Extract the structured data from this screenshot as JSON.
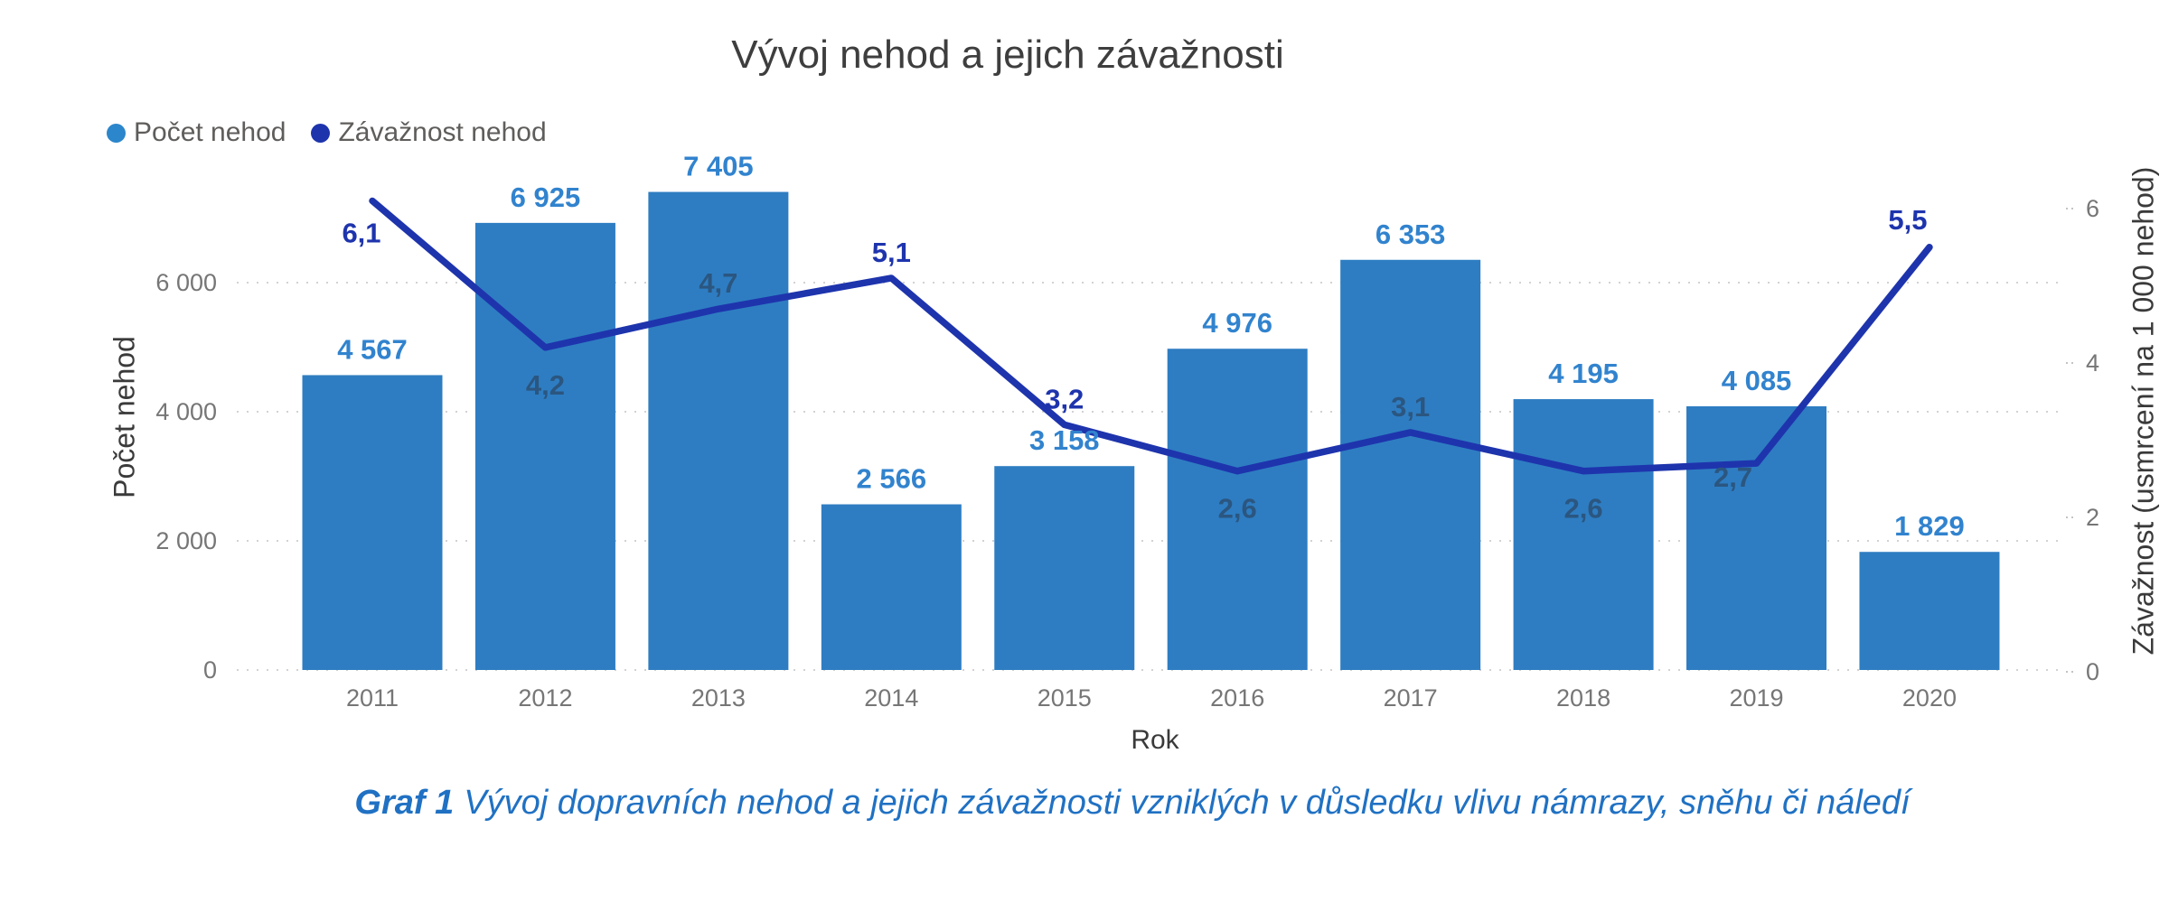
{
  "header": {
    "title": "Vývoj nehod a jejich závažnosti"
  },
  "legend": {
    "items": [
      {
        "label": "Počet nehod",
        "marker_color": "#2C86CB"
      },
      {
        "label": "Závažnost nehod",
        "marker_color": "#1E34AD"
      }
    ]
  },
  "chart_data": {
    "type": "combo-bar-line",
    "title": "Vývoj nehod a jejich závažnosti",
    "categories": [
      "2011",
      "2012",
      "2013",
      "2014",
      "2015",
      "2016",
      "2017",
      "2018",
      "2019",
      "2020"
    ],
    "series": [
      {
        "name": "Počet nehod",
        "type": "bar",
        "y_axis": "left",
        "values": [
          4567,
          6925,
          7405,
          2566,
          3158,
          4976,
          6353,
          4195,
          4085,
          1829
        ],
        "value_labels": [
          "4 567",
          "6 925",
          "7 405",
          "2 566",
          "3 158",
          "4 976",
          "6 353",
          "4 195",
          "4 085",
          "1 829"
        ],
        "color": "#2E7DC2",
        "label_color": "#3183CE"
      },
      {
        "name": "Závažnost nehod",
        "type": "line",
        "y_axis": "right",
        "values": [
          6.1,
          4.2,
          4.7,
          5.1,
          3.2,
          2.6,
          3.1,
          2.6,
          2.7,
          5.5
        ],
        "value_labels": [
          "6,1",
          "4,2",
          "4,7",
          "5,1",
          "3,2",
          "2,6",
          "3,1",
          "2,6",
          "2,7",
          "5,5"
        ],
        "label_placements": [
          "left-below",
          "below",
          "above",
          "above",
          "above",
          "below",
          "above",
          "below",
          "on-left",
          "above-left"
        ],
        "color": "#1E34AD",
        "label_color": "#1E34AD",
        "label_color_on_bar": "#2B5680"
      }
    ],
    "x_axis": {
      "title": "Rok"
    },
    "y_axis_left": {
      "title": "Počet nehod",
      "tick_values": [
        0,
        2000,
        4000,
        6000
      ],
      "tick_labels": [
        "0",
        "2 000",
        "4 000",
        "6 000"
      ],
      "range": [
        0,
        7405
      ]
    },
    "y_axis_right": {
      "title": "Závažnost (usmrcení na 1 000 nehod)",
      "tick_values": [
        0,
        2,
        4,
        6
      ],
      "tick_labels": [
        "0",
        "2",
        "4",
        "6"
      ],
      "range": [
        0,
        6.5
      ]
    },
    "grid": {
      "horizontal": "dotted"
    },
    "legend_position": "top-left"
  },
  "caption": {
    "prefix": "Graf 1",
    "text": "Vývoj dopravních nehod a jejich závažnosti vzniklých v důsledku vlivu námrazy, sněhu či náledí",
    "color": "#2071C3"
  },
  "colors": {
    "bar": "#2E7DC2",
    "line": "#1E34AD",
    "bar_label": "#3183CE",
    "line_label": "#1E34AD",
    "line_label_on_bar": "#2B5680",
    "tick_text": "#767676",
    "axis_title_text": "#3A3A3A",
    "title_text": "#3E3E3E",
    "legend_text": "#5F5D5B",
    "gridline": "#D2D2D2"
  }
}
